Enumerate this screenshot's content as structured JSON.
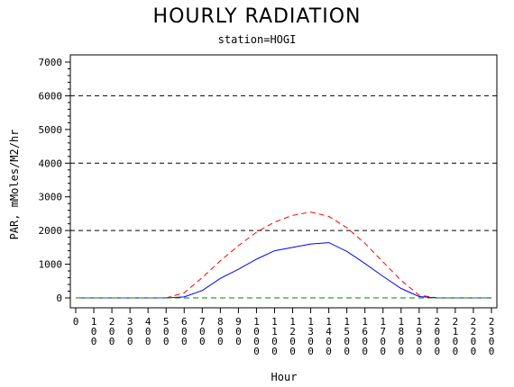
{
  "chart_data": {
    "type": "line",
    "title": "HOURLY RADIATION",
    "subtitle": "station=HOGI",
    "xlabel": "Hour",
    "ylabel": "PAR, mMoles/M2/hr",
    "ylim": [
      0,
      7000
    ],
    "yticks": [
      0,
      1000,
      2000,
      3000,
      4000,
      5000,
      6000,
      7000
    ],
    "ytick_labels": [
      "0",
      "1000",
      "2000",
      "3000",
      "4000",
      "5000",
      "6000",
      "7000"
    ],
    "xticks": [
      0,
      100,
      200,
      300,
      400,
      500,
      600,
      700,
      800,
      900,
      1000,
      1100,
      1200,
      1300,
      1400,
      1500,
      1600,
      1700,
      1800,
      1900,
      2000,
      2100,
      2200,
      2300
    ],
    "xtick_labels": [
      "0",
      "100",
      "200",
      "300",
      "400",
      "500",
      "600",
      "700",
      "800",
      "900",
      "1000",
      "1100",
      "1200",
      "1300",
      "1400",
      "1500",
      "1600",
      "1700",
      "1800",
      "1900",
      "2000",
      "2100",
      "2200",
      "2300"
    ],
    "reference_lines": [
      2000,
      4000,
      6000
    ],
    "x": [
      0,
      100,
      200,
      300,
      400,
      500,
      600,
      700,
      800,
      900,
      1000,
      1100,
      1200,
      1300,
      1400,
      1500,
      1600,
      1700,
      1800,
      1900,
      2000,
      2100,
      2200,
      2300
    ],
    "series": [
      {
        "color": "#ff0000",
        "dash": "dashed",
        "values": [
          0,
          0,
          0,
          0,
          0,
          0,
          150,
          600,
          1100,
          1550,
          1950,
          2250,
          2450,
          2550,
          2420,
          2080,
          1620,
          1070,
          520,
          80,
          0,
          0,
          0,
          0
        ]
      },
      {
        "color": "#0000ff",
        "dash": "solid",
        "values": [
          0,
          0,
          0,
          0,
          0,
          0,
          30,
          220,
          580,
          850,
          1150,
          1400,
          1500,
          1600,
          1640,
          1380,
          1020,
          640,
          280,
          40,
          0,
          0,
          0,
          0
        ]
      },
      {
        "color": "#008000",
        "dash": "dashed",
        "values": [
          0,
          0,
          0,
          0,
          0,
          0,
          0,
          0,
          0,
          0,
          0,
          0,
          0,
          0,
          0,
          0,
          0,
          0,
          0,
          0,
          0,
          0,
          0,
          0
        ]
      }
    ]
  }
}
